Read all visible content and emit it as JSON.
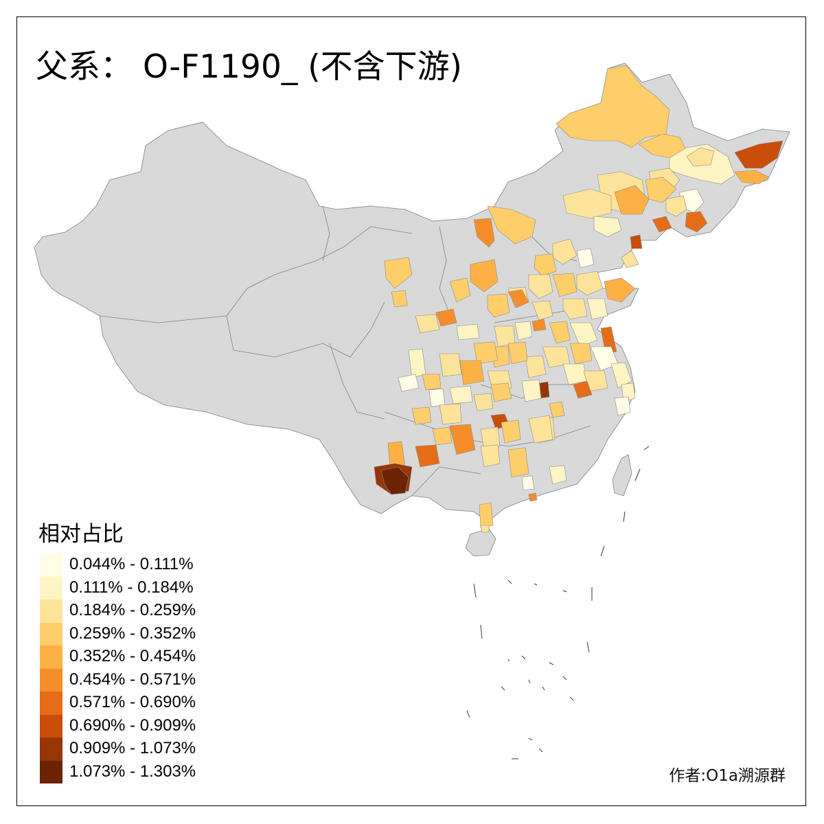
{
  "title": "父系： O-F1190_ (不含下游)",
  "legend": {
    "title": "相对占比",
    "items": [
      {
        "label": "0.044% - 0.111%",
        "color": "#fffde6"
      },
      {
        "label": "0.111% - 0.184%",
        "color": "#fff4c4"
      },
      {
        "label": "0.184% - 0.259%",
        "color": "#fee49a"
      },
      {
        "label": "0.259% - 0.352%",
        "color": "#fece6a"
      },
      {
        "label": "0.352% - 0.454%",
        "color": "#fdb145"
      },
      {
        "label": "0.454% - 0.571%",
        "color": "#f58e2a"
      },
      {
        "label": "0.571% - 0.690%",
        "color": "#e56d17"
      },
      {
        "label": "0.690% - 0.909%",
        "color": "#c84e0a"
      },
      {
        "label": "0.909% - 1.073%",
        "color": "#983505"
      },
      {
        "label": "1.073% - 1.303%",
        "color": "#6b2303"
      }
    ]
  },
  "credit": "作者:O1a溯源群",
  "colors": {
    "no_data": "#d9d9d9",
    "boundary": "#7f7f7f",
    "frame": "#000000"
  }
}
